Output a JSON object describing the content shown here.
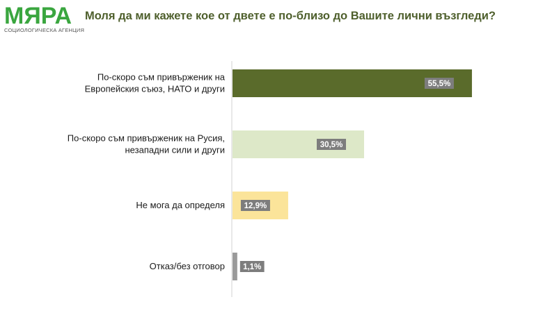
{
  "logo": {
    "name": "МЯРА",
    "tagline": "СОЦИОЛОГИЧЕСКА АГЕНЦИЯ",
    "color": "#3aa63f"
  },
  "title": "Моля да ми кажете кое от двете е по-близо до Вашите лични възгледи?",
  "chart_data": {
    "type": "bar",
    "orientation": "horizontal",
    "title": "Моля да ми кажете кое от двете е по-близо до Вашите лични възгледи?",
    "categories": [
      [
        "По-скоро съм привърженик на",
        "Европейския съюз, НАТО и други"
      ],
      [
        "По-скоро съм привърженик на Русия,",
        "незападни сили и други"
      ],
      [
        "Не мога да определя"
      ],
      [
        "Отказ/без отговор"
      ]
    ],
    "values": [
      55.5,
      30.5,
      12.9,
      1.1
    ],
    "value_labels": [
      "55,5%",
      "30,5%",
      "12,9%",
      "1,1%"
    ],
    "colors": [
      "#5a6b2b",
      "#dde8c8",
      "#fbe49a",
      "#9a9a9a"
    ],
    "label_box_color": "#7d7d7d",
    "xlim": [
      0,
      61
    ],
    "grid": false,
    "legend": "none"
  }
}
